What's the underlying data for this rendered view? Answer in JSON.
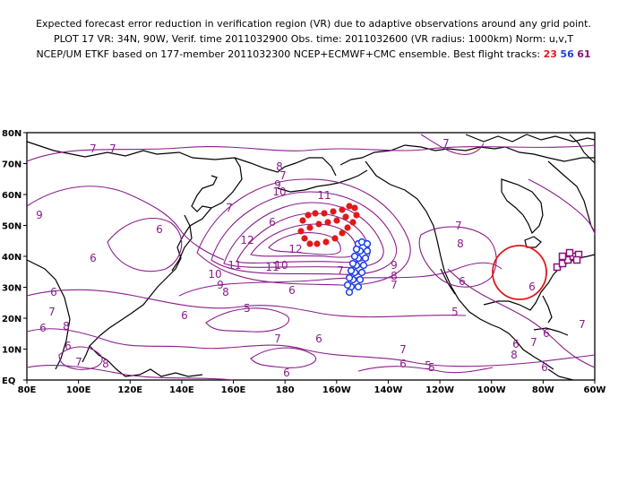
{
  "header": {
    "line1": "Expected forecast error reduction in verification region (VR) due to adaptive observations around any grid point.",
    "line2": "PLOT 17 VR: 34N, 90W, Verif. time 2011032900 Obs. time: 2011032600 (VR radius: 1000km) Norm: u,v,T",
    "line3_prefix": "NCEP/UM ETKF based on 177-member 2011032300 NCEP+ECMWF+CMC ensemble. Best flight tracks:",
    "track_ids": [
      "23",
      "56",
      "61"
    ]
  },
  "colors": {
    "contour": "#8b1d8b",
    "track_red": "#e0191b",
    "track_blue": "#1a3ee6",
    "track_purple": "#8a0f7a",
    "verification_circle": "#e0191b"
  },
  "axes": {
    "lat_labels": [
      "80N",
      "70N",
      "60N",
      "50N",
      "40N",
      "30N",
      "20N",
      "10N",
      "EQ"
    ],
    "lon_labels": [
      "80E",
      "100E",
      "120E",
      "140E",
      "160E",
      "180",
      "160W",
      "140W",
      "120W",
      "100W",
      "80W",
      "60W"
    ]
  },
  "contour_labels": [
    {
      "text": "7"
    },
    {
      "text": "7"
    },
    {
      "text": "9"
    },
    {
      "text": "6"
    },
    {
      "text": "6"
    },
    {
      "text": "6"
    },
    {
      "text": "8"
    },
    {
      "text": "6"
    },
    {
      "text": "7"
    },
    {
      "text": "8"
    },
    {
      "text": "7"
    },
    {
      "text": "6"
    },
    {
      "text": "7"
    },
    {
      "text": "8"
    },
    {
      "text": "9"
    },
    {
      "text": "10"
    },
    {
      "text": "11"
    },
    {
      "text": "12"
    },
    {
      "text": "12"
    },
    {
      "text": "11"
    },
    {
      "text": "10"
    },
    {
      "text": "9"
    },
    {
      "text": "8"
    },
    {
      "text": "7"
    },
    {
      "text": "11"
    },
    {
      "text": "10"
    },
    {
      "text": "9"
    },
    {
      "text": "8"
    },
    {
      "text": "7"
    },
    {
      "text": "6"
    },
    {
      "text": "5"
    },
    {
      "text": "6"
    },
    {
      "text": "7"
    },
    {
      "text": "6"
    },
    {
      "text": "6"
    },
    {
      "text": "5"
    },
    {
      "text": "7"
    },
    {
      "text": "8"
    },
    {
      "text": "7"
    },
    {
      "text": "6"
    },
    {
      "text": "5"
    },
    {
      "text": "6"
    },
    {
      "text": "6"
    },
    {
      "text": "7"
    },
    {
      "text": "6"
    },
    {
      "text": "8"
    },
    {
      "text": "7"
    },
    {
      "text": "6"
    },
    {
      "text": "7"
    },
    {
      "text": "6"
    },
    {
      "text": "5"
    },
    {
      "text": "6"
    },
    {
      "text": "7"
    }
  ],
  "verification_region": {
    "lat": 34,
    "lon": -90,
    "radius_km": 1000
  },
  "flight_tracks": [
    {
      "id": "23",
      "color": "red",
      "marker": "dot"
    },
    {
      "id": "56",
      "color": "blue",
      "marker": "circle"
    },
    {
      "id": "61",
      "color": "purple",
      "marker": "square"
    }
  ]
}
